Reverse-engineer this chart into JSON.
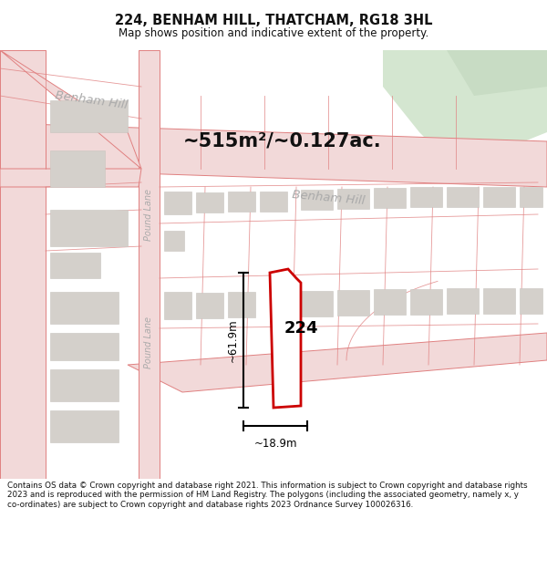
{
  "title": "224, BENHAM HILL, THATCHAM, RG18 3HL",
  "subtitle": "Map shows position and indicative extent of the property.",
  "area_text": "~515m²/~0.127ac.",
  "property_label": "224",
  "dim_vertical": "~61.9m",
  "dim_horizontal": "~18.9m",
  "street_benham_upper": "Benham Hill",
  "street_benham_lower": "Benham Hill",
  "street_pound_upper": "Pound Lane",
  "street_pound_lower": "Pound Lane",
  "footer": "Contains OS data © Crown copyright and database right 2021. This information is subject to Crown copyright and database rights 2023 and is reproduced with the permission of HM Land Registry. The polygons (including the associated geometry, namely x, y co-ordinates) are subject to Crown copyright and database rights 2023 Ordnance Survey 100026316.",
  "map_bg": "#f5f3f0",
  "road_fill": "#f2d9d9",
  "road_edge": "#e08080",
  "lot_line": "#e08080",
  "building_color": "#d4d0cb",
  "building_edge": "#c8c4bf",
  "green_color": "#d4e6d0",
  "green_color2": "#c8dcc4",
  "property_line_color": "#cc0000",
  "property_fill": "#ffffff",
  "title_color": "#111111",
  "footer_color": "#111111",
  "dim_color": "#000000",
  "street_color": "#aaaaaa",
  "area_color": "#111111"
}
